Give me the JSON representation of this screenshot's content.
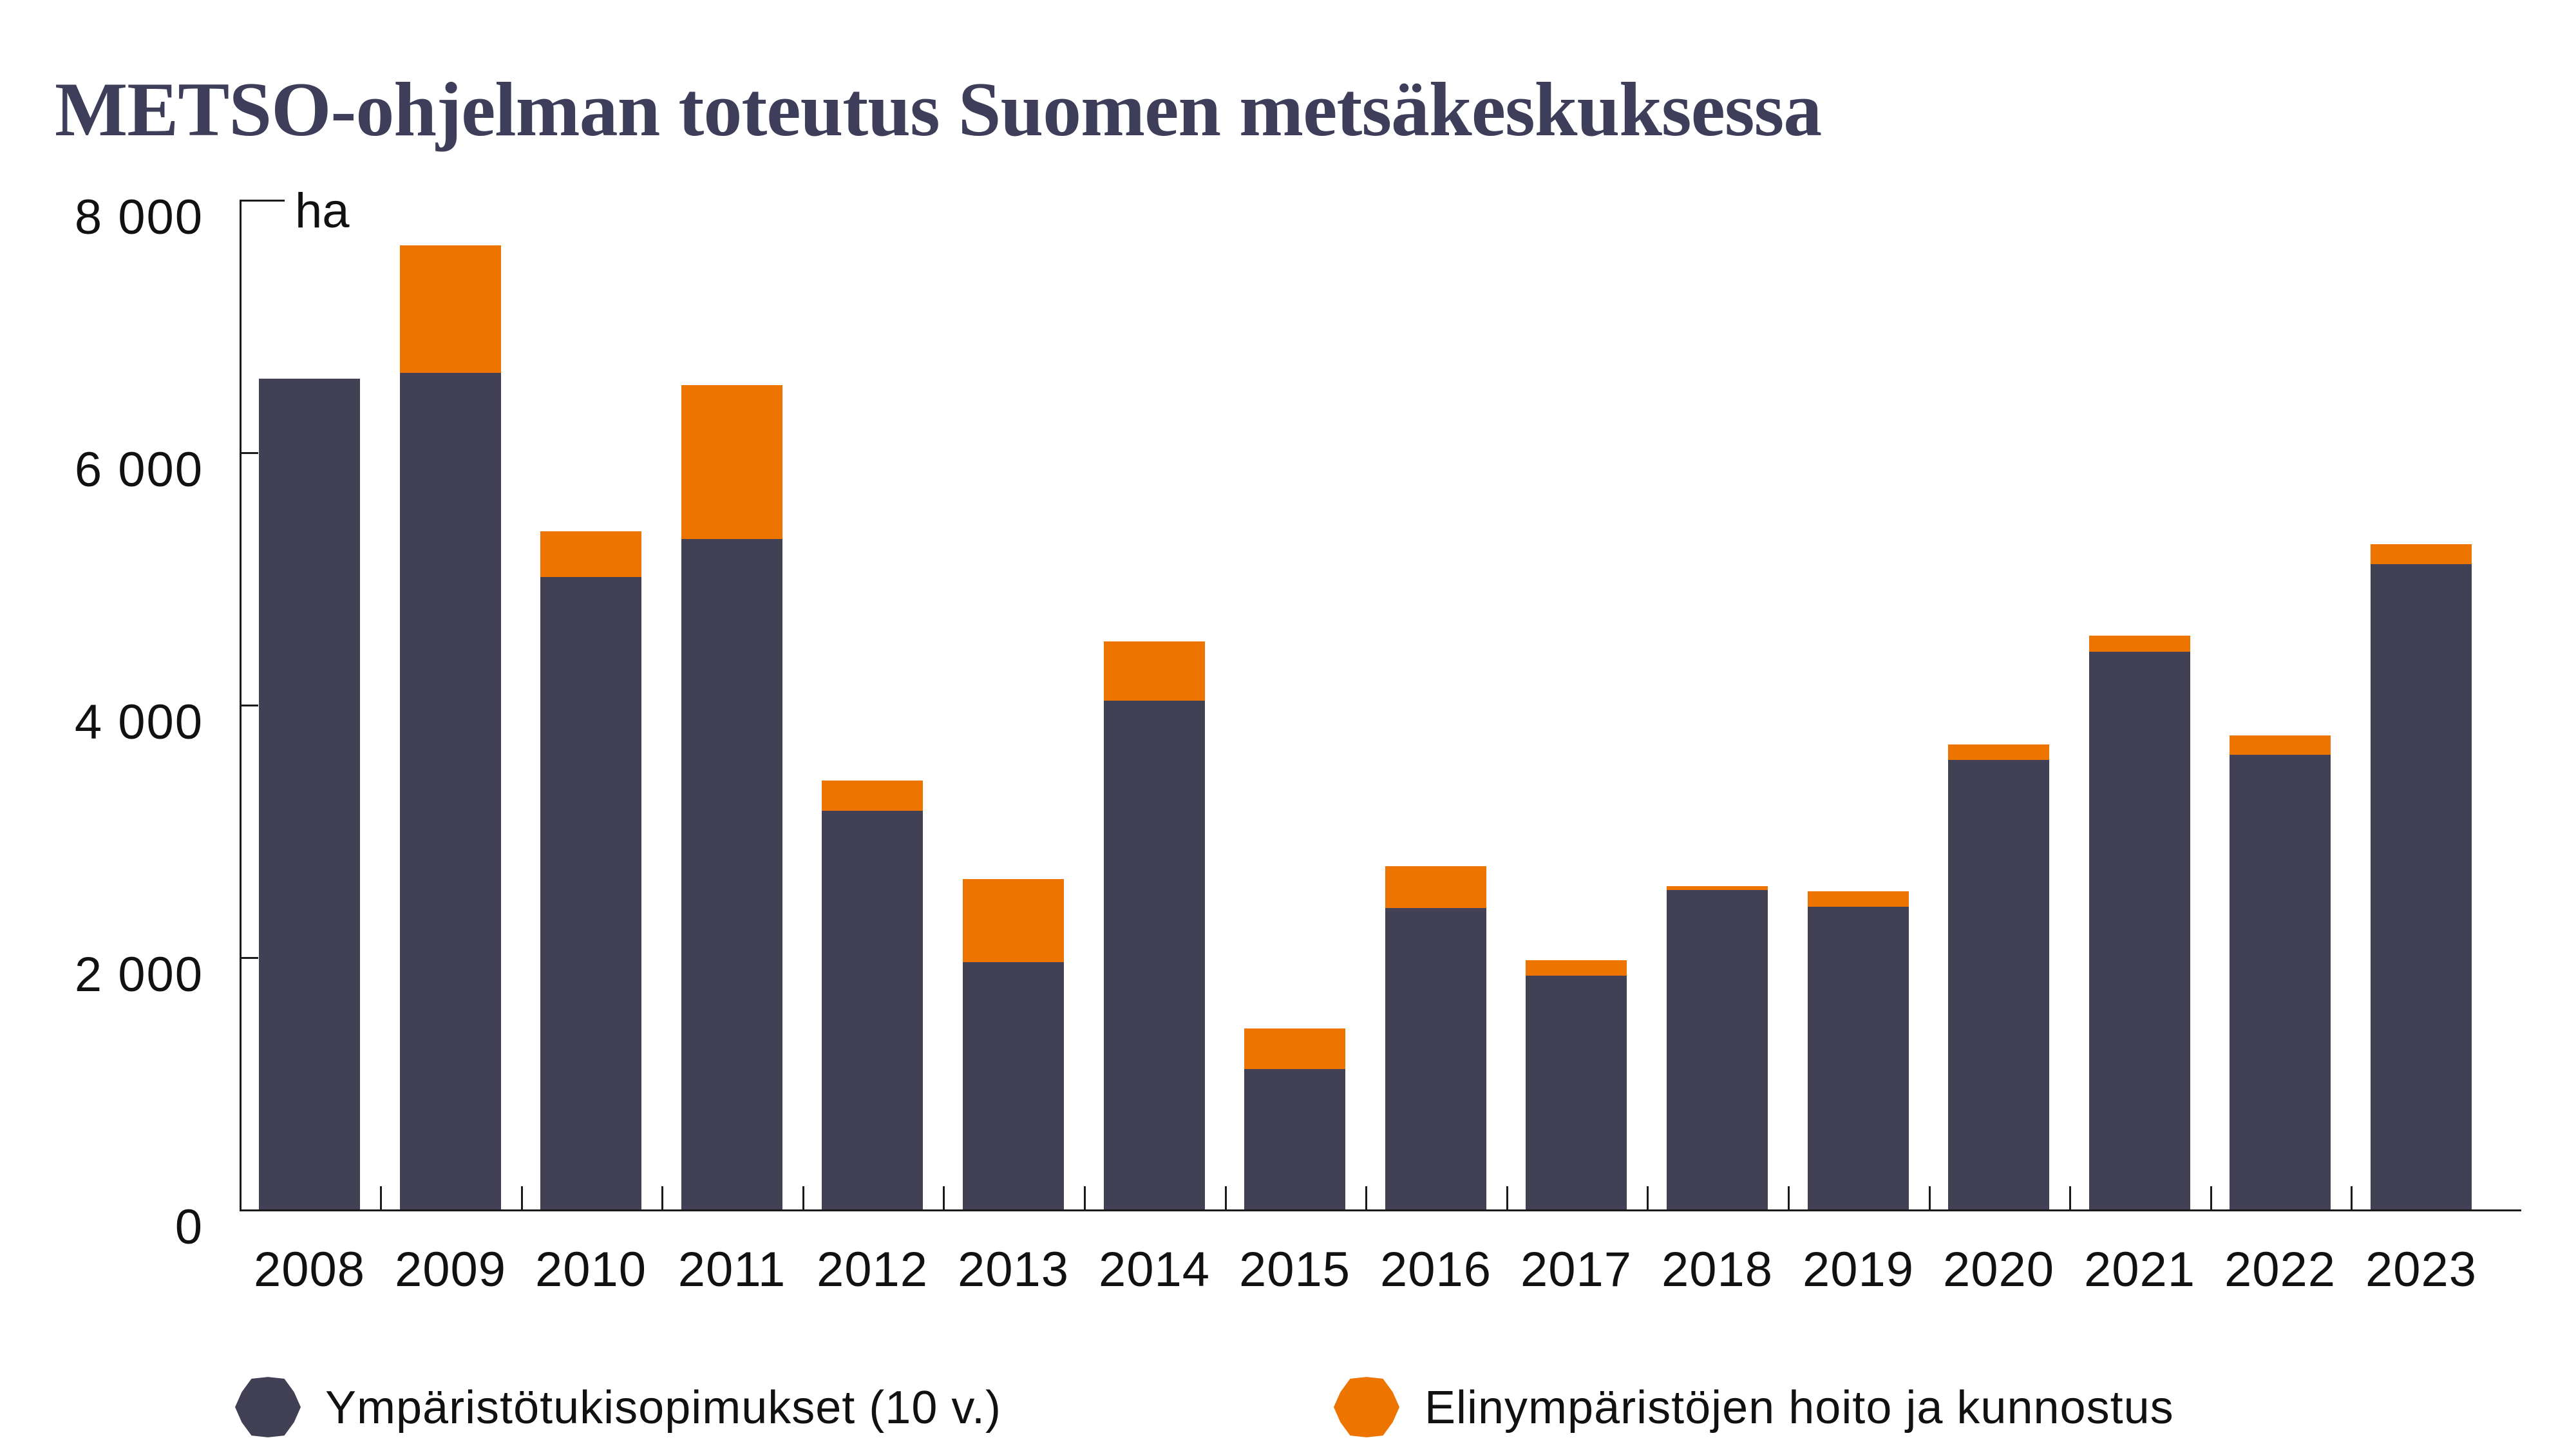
{
  "title": "METSO-ohjelman toteutus Suomen metsäkeskuksessa",
  "colors": {
    "series_dark": "#414054",
    "series_orange": "#EE7400",
    "title": "#3E3D5A",
    "axis": "#1A1A1A",
    "text": "#111111",
    "background": "#FFFFFF"
  },
  "legend": {
    "items": [
      {
        "label": "Ympäristötukisopimukset (10 v.)",
        "color": "#414054",
        "marker": "polygon-dot"
      },
      {
        "label": "Elinympäristöjen hoito ja kunnostus",
        "color": "#EE7400",
        "marker": "polygon-dot"
      }
    ]
  },
  "chart_data": {
    "type": "bar",
    "stacked": true,
    "title": "METSO-ohjelman toteutus Suomen metsäkeskuksessa",
    "unit": "ha",
    "categories": [
      "2008",
      "2009",
      "2010",
      "2011",
      "2012",
      "2013",
      "2014",
      "2015",
      "2016",
      "2017",
      "2018",
      "2019",
      "2020",
      "2021",
      "2022",
      "2023"
    ],
    "series": [
      {
        "name": "Ympäristötukisopimukset (10 v.)",
        "color": "#414054",
        "values": [
          6580,
          6630,
          5010,
          5310,
          3160,
          1960,
          4030,
          1110,
          2390,
          1850,
          2530,
          2400,
          3560,
          4420,
          3600,
          5110
        ]
      },
      {
        "name": "Elinympäristöjen hoito ja kunnostus",
        "color": "#EE7400",
        "values": [
          0,
          1010,
          360,
          1220,
          240,
          660,
          470,
          320,
          330,
          120,
          30,
          120,
          120,
          130,
          155,
          160
        ]
      }
    ],
    "totals": [
      6580,
      7640,
      5370,
      6530,
      3400,
      2620,
      4500,
      1430,
      2720,
      1970,
      2560,
      2520,
      3680,
      4550,
      3755,
      5270
    ],
    "ylim": [
      0,
      8000
    ],
    "y_ticks": [
      {
        "label": "8 000",
        "value": 8000
      },
      {
        "label": "6 000",
        "value": 6000
      },
      {
        "label": "4 000",
        "value": 4000
      },
      {
        "label": "2 000",
        "value": 2000
      },
      {
        "label": "0",
        "value": 0
      }
    ],
    "grid": false,
    "legend_position": "bottom"
  }
}
